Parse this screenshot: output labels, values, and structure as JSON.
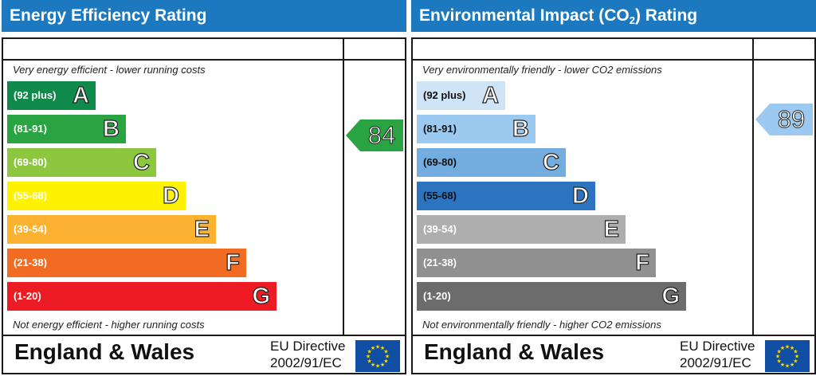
{
  "colors": {
    "header_bg": "#1c79c0",
    "energy": [
      "#0f8a4b",
      "#2aa342",
      "#8dc73f",
      "#fff200",
      "#fcb130",
      "#f26b22",
      "#ed1c24"
    ],
    "environment": [
      "#cfe5f7",
      "#9cc9ef",
      "#73addf",
      "#2c74bf",
      "#aeaeae",
      "#909090",
      "#6c6c6c"
    ],
    "energy_arrow": "#2aa342",
    "environment_arrow": "#9cc9ef",
    "eu_flag_blue": "#0f4ea3",
    "eu_flag_stars": "#ffdd00"
  },
  "energy": {
    "header": "Energy Efficiency Rating",
    "top_caption": "Very energy efficient - lower running costs",
    "bottom_caption": "Not energy efficient - higher running costs",
    "footer_title": "England & Wales",
    "directive_line1": "EU Directive",
    "directive_line2": "2002/91/EC",
    "rating": "84"
  },
  "environment": {
    "header_prefix": "Environmental Impact (CO",
    "header_sub": "2",
    "header_suffix": ") Rating",
    "top_caption": "Very environmentally friendly - lower CO2 emissions",
    "bottom_caption": "Not environmentally friendly - higher CO2 emissions",
    "footer_title": "England & Wales",
    "directive_line1": "EU Directive",
    "directive_line2": "2002/91/EC",
    "rating": "89"
  },
  "chart_data": [
    {
      "type": "bar",
      "title": "Energy Efficiency Rating",
      "categories": [
        "A",
        "B",
        "C",
        "D",
        "E",
        "F",
        "G"
      ],
      "ranges": [
        "(92 plus)",
        "(81-91)",
        "(69-80)",
        "(55-68)",
        "(39-54)",
        "(21-38)",
        "(1-20)"
      ],
      "current_rating": 84,
      "current_band": "B"
    },
    {
      "type": "bar",
      "title": "Environmental Impact (CO2) Rating",
      "categories": [
        "A",
        "B",
        "C",
        "D",
        "E",
        "F",
        "G"
      ],
      "ranges": [
        "(92 plus)",
        "(81-91)",
        "(69-80)",
        "(55-68)",
        "(39-54)",
        "(21-38)",
        "(1-20)"
      ],
      "current_rating": 89,
      "current_band": "B"
    }
  ]
}
